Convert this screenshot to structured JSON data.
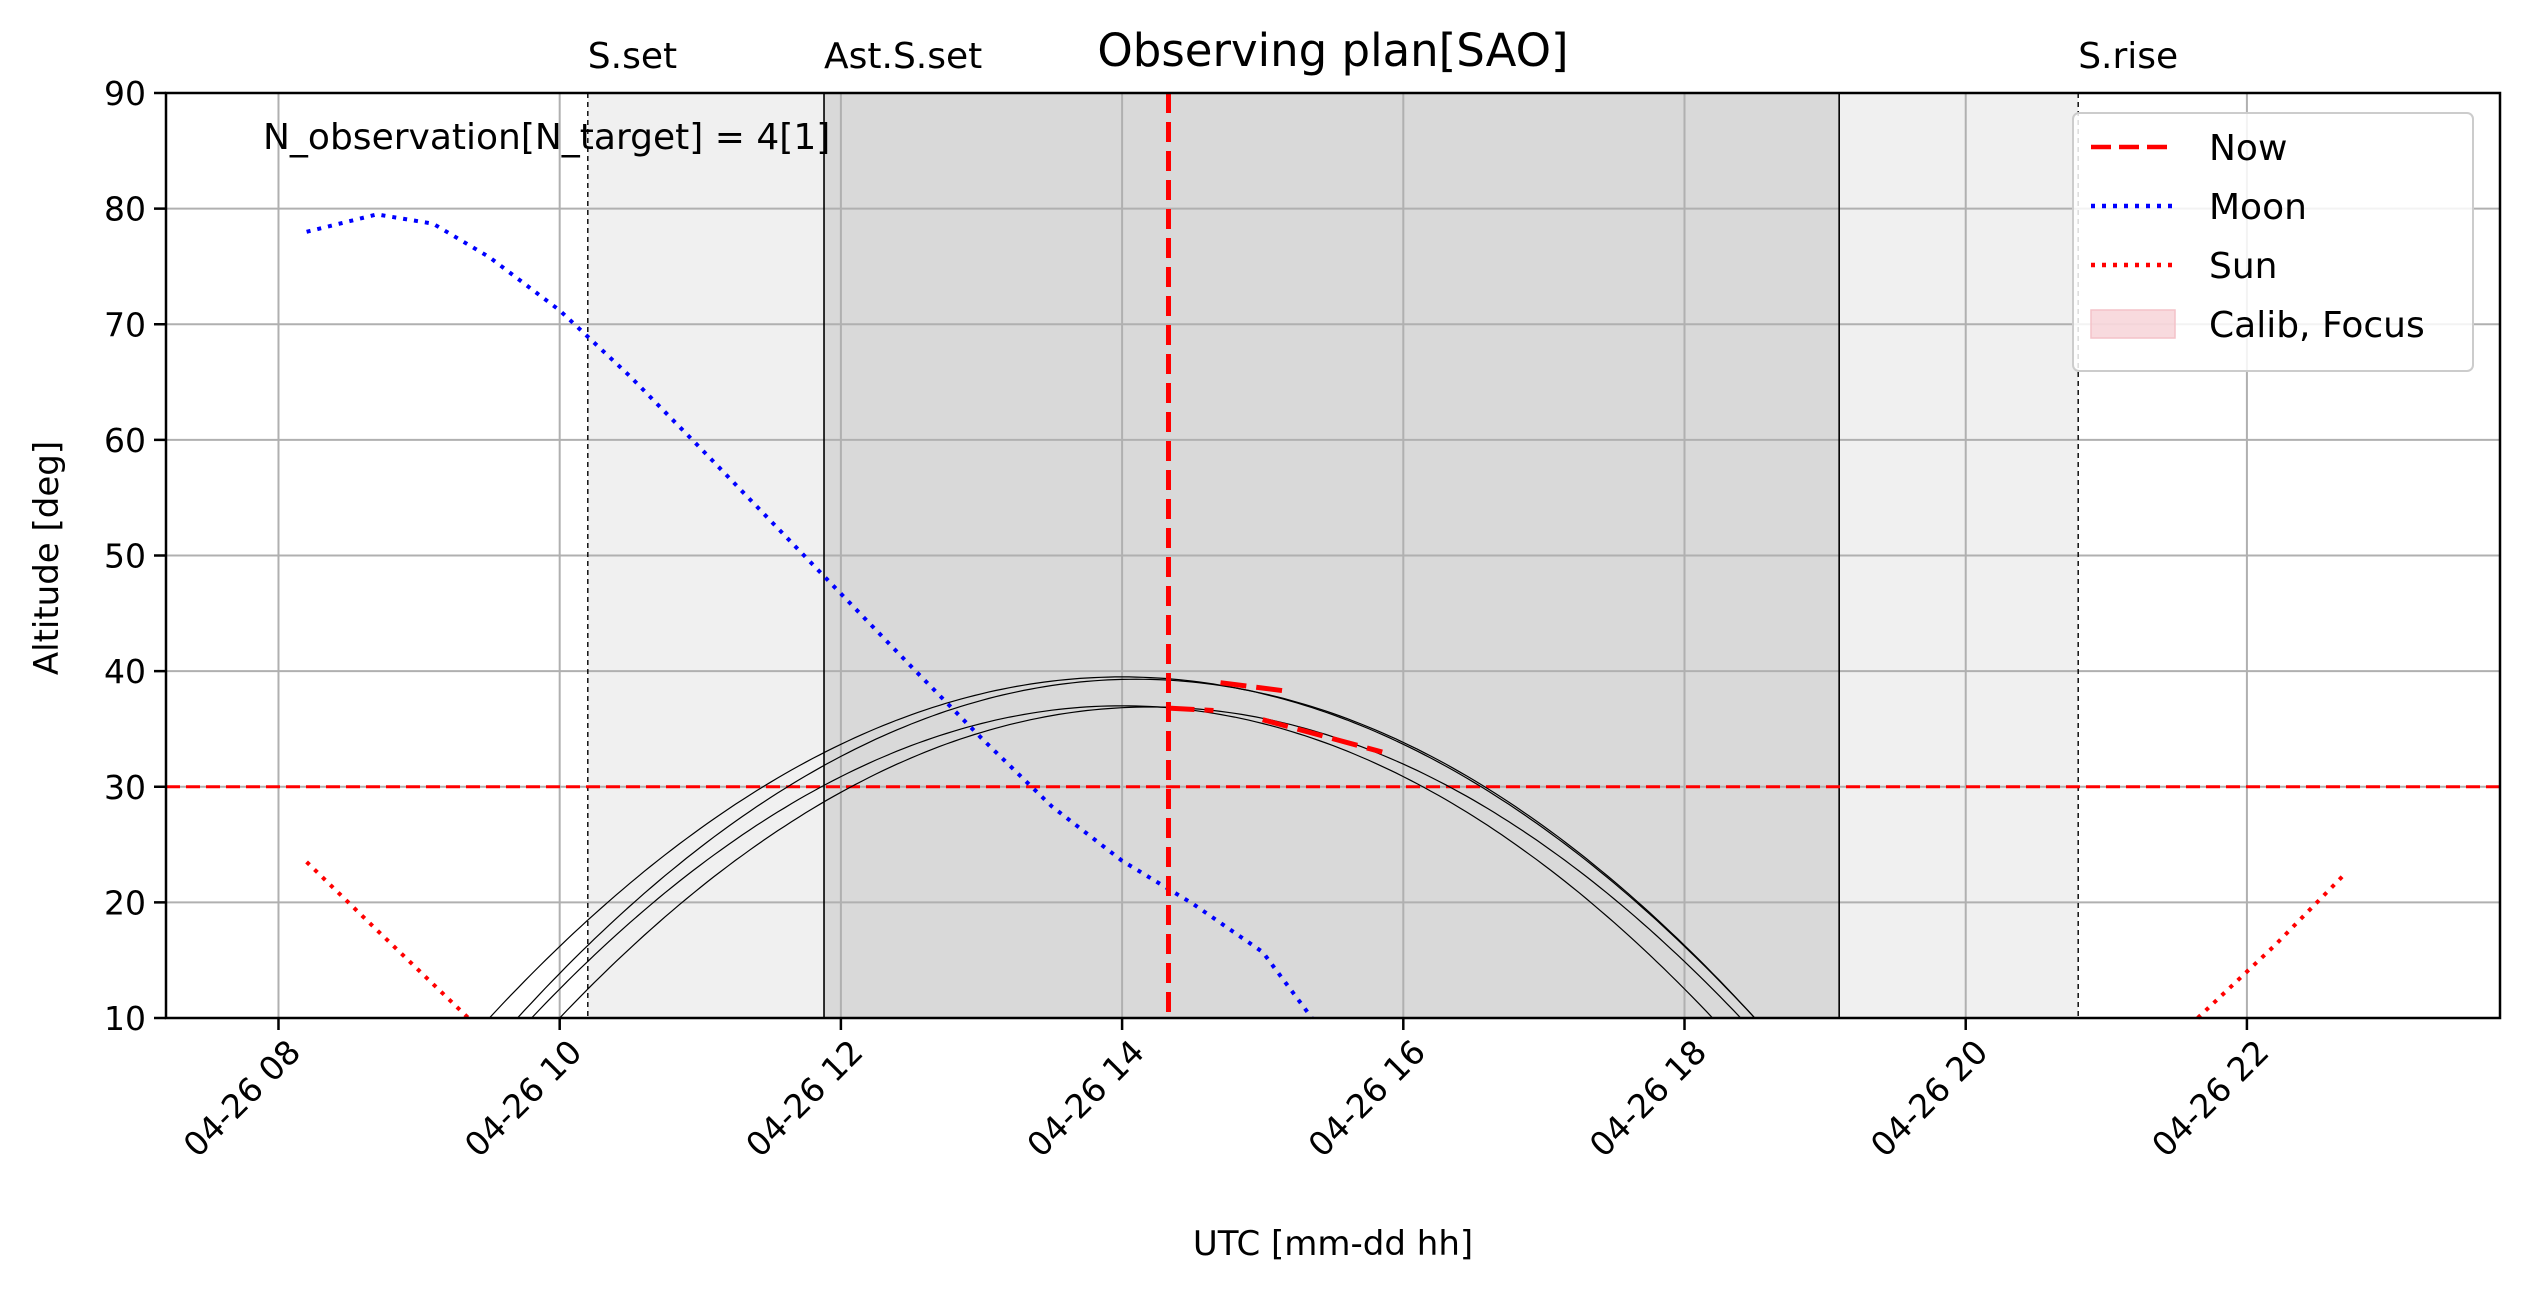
{
  "chart_data": {
    "type": "line",
    "title": "Observing plan[SAO]",
    "xlabel": "UTC [mm-dd hh]",
    "ylabel": "Altitude [deg]",
    "x_unit": "hours UTC on 04-26",
    "xlim": [
      7.2,
      23.8
    ],
    "ylim": [
      10,
      90
    ],
    "grid": true,
    "legend_position": "top-right",
    "annotation": "N_observation[N_target] = 4[1]",
    "x_ticks": [
      {
        "x": 8,
        "label": "04-26 08"
      },
      {
        "x": 10,
        "label": "04-26 10"
      },
      {
        "x": 12,
        "label": "04-26 12"
      },
      {
        "x": 14,
        "label": "04-26 14"
      },
      {
        "x": 16,
        "label": "04-26 16"
      },
      {
        "x": 18,
        "label": "04-26 18"
      },
      {
        "x": 20,
        "label": "04-26 20"
      },
      {
        "x": 22,
        "label": "04-26 22"
      }
    ],
    "y_ticks": [
      10,
      20,
      30,
      40,
      50,
      60,
      70,
      80,
      90
    ],
    "events": [
      {
        "label": "S.set",
        "x": 10.2
      },
      {
        "label": "Ast.S.set",
        "x": 11.88
      },
      {
        "label": "S.rise",
        "x": 20.8
      }
    ],
    "twilight_band": {
      "x": [
        10.2,
        20.8
      ],
      "color": "#f0f0f0"
    },
    "night_band": {
      "x": [
        11.88,
        19.1
      ],
      "color": "#d9d9d9"
    },
    "night_end_line": 19.1,
    "now": {
      "label": "Now",
      "x": 14.33,
      "color": "#ff0000"
    },
    "altitude_limit": {
      "y": 30,
      "color": "#ff0000"
    },
    "moon": {
      "label": "Moon",
      "color": "#0000ff",
      "points": [
        [
          8.2,
          78
        ],
        [
          8.7,
          79.5
        ],
        [
          9.1,
          78.7
        ],
        [
          9.5,
          75.8
        ],
        [
          10.0,
          71.2
        ],
        [
          10.5,
          65.5
        ],
        [
          11.0,
          59.3
        ],
        [
          11.5,
          53
        ],
        [
          12.0,
          46.7
        ],
        [
          12.5,
          40.4
        ],
        [
          13.0,
          34.2
        ],
        [
          13.5,
          28.3
        ],
        [
          14.0,
          23.6
        ],
        [
          14.5,
          19.9
        ],
        [
          15.0,
          15.7
        ],
        [
          15.35,
          10
        ]
      ]
    },
    "sun": {
      "label": "Sun",
      "color": "#ff0000",
      "segments": [
        [
          [
            8.2,
            23.5
          ],
          [
            8.7,
            17.6
          ],
          [
            9.35,
            10
          ]
        ],
        [
          [
            21.65,
            10
          ],
          [
            22.2,
            16.3
          ],
          [
            22.7,
            22.5
          ]
        ]
      ]
    },
    "target_tracks": [
      {
        "peak_x": 14.0,
        "peak_y": 39.5,
        "start_x": 9.5
      },
      {
        "peak_x": 14.1,
        "peak_y": 39.3,
        "start_x": 9.7
      },
      {
        "peak_x": 14.0,
        "peak_y": 37.0,
        "start_x": 9.8
      },
      {
        "peak_x": 14.2,
        "peak_y": 36.9,
        "start_x": 10.0
      }
    ],
    "target_end_x": 18.57,
    "scheduled_observations": [
      {
        "x": [
          14.33,
          14.65
        ],
        "y": [
          36.8,
          36.6
        ]
      },
      {
        "x": [
          14.7,
          15.15
        ],
        "y": [
          39.0,
          38.3
        ]
      },
      {
        "x": [
          15.0,
          15.85
        ],
        "y": [
          35.8,
          33.0
        ]
      }
    ],
    "legend": [
      {
        "label": "Now",
        "style": "dashed",
        "color": "#ff0000"
      },
      {
        "label": "Moon",
        "style": "dotted",
        "color": "#0000ff"
      },
      {
        "label": "Sun",
        "style": "dotted",
        "color": "#ff0000"
      },
      {
        "label": "Calib, Focus",
        "style": "patch",
        "color": "#f4c2c8"
      }
    ]
  }
}
